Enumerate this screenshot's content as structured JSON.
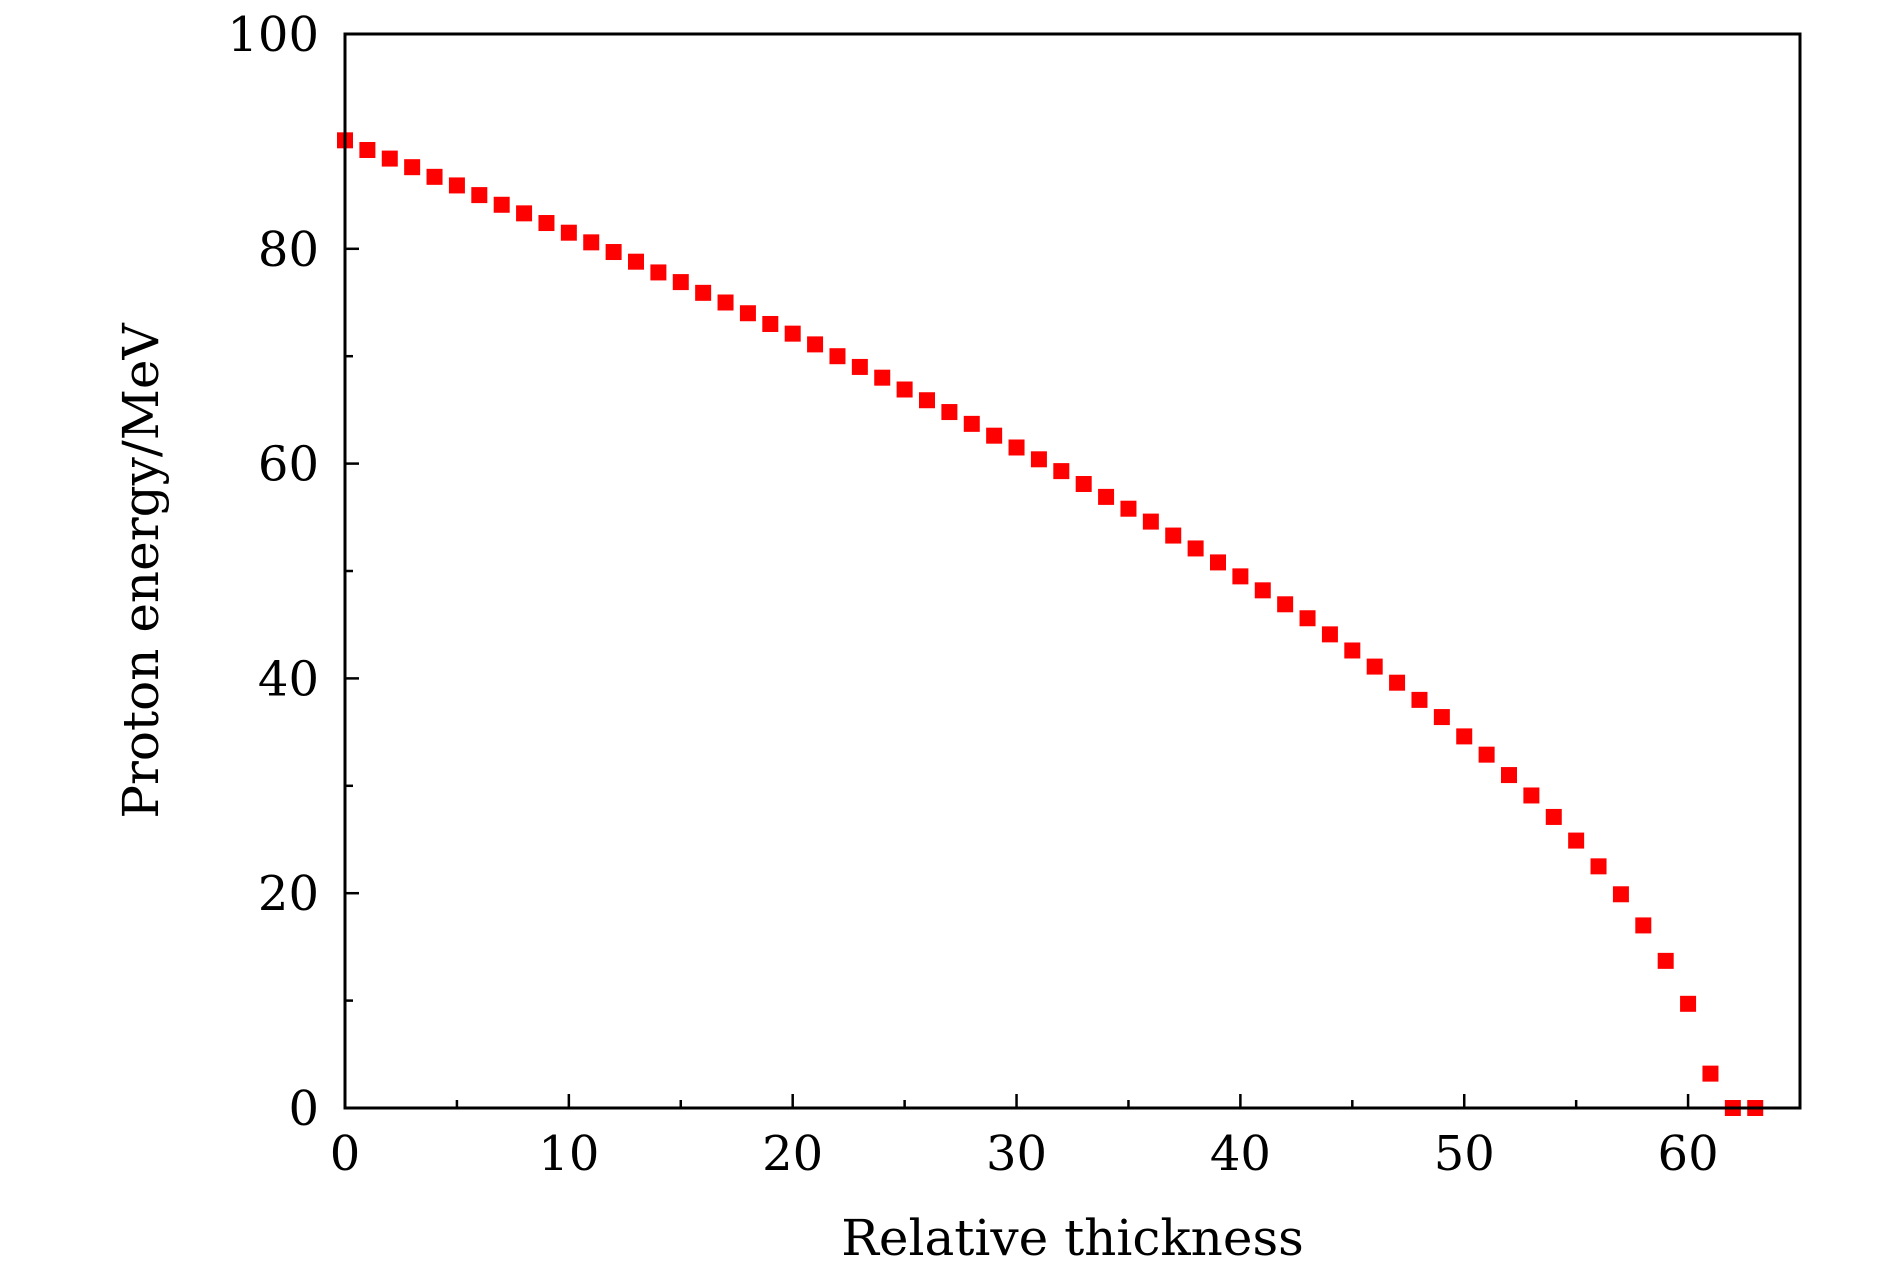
{
  "chart_data": {
    "type": "scatter",
    "xlabel": "Relative thickness",
    "ylabel": "Proton energy/MeV",
    "xlim": [
      0,
      65
    ],
    "ylim": [
      0,
      100
    ],
    "x_ticks": [
      0,
      10,
      20,
      30,
      40,
      50,
      60
    ],
    "x_minor_ticks": [
      5,
      15,
      25,
      35,
      45,
      55
    ],
    "y_ticks": [
      0,
      20,
      40,
      60,
      80,
      100
    ],
    "y_minor_ticks": [
      10,
      30,
      50,
      70,
      90
    ],
    "grid": false,
    "marker": "square",
    "color": "#ff0000",
    "series": [
      {
        "x": [
          0,
          1,
          2,
          3,
          4,
          5,
          6,
          7,
          8,
          9,
          10,
          11,
          12,
          13,
          14,
          15,
          16,
          17,
          18,
          19,
          20,
          21,
          22,
          23,
          24,
          25,
          26,
          27,
          28,
          29,
          30,
          31,
          32,
          33,
          34,
          35,
          36,
          37,
          38,
          39,
          40,
          41,
          42,
          43,
          44,
          45,
          46,
          47,
          48,
          49,
          50,
          51,
          52,
          53,
          54,
          55,
          56,
          57,
          58,
          59,
          60,
          61,
          62,
          63
        ],
        "values": [
          90.1,
          89.2,
          88.4,
          87.6,
          86.7,
          85.9,
          85.0,
          84.1,
          83.3,
          82.4,
          81.5,
          80.6,
          79.7,
          78.8,
          77.8,
          76.9,
          75.9,
          75.0,
          74.0,
          73.0,
          72.1,
          71.1,
          70.0,
          69.0,
          68.0,
          66.9,
          65.9,
          64.8,
          63.7,
          62.6,
          61.5,
          60.4,
          59.3,
          58.1,
          56.9,
          55.8,
          54.6,
          53.3,
          52.1,
          50.8,
          49.5,
          48.2,
          46.9,
          45.6,
          44.1,
          42.6,
          41.1,
          39.6,
          38.0,
          36.4,
          34.6,
          32.9,
          31.0,
          29.1,
          27.1,
          24.9,
          22.5,
          19.9,
          17.0,
          13.7,
          9.7,
          3.2,
          0,
          0
        ]
      }
    ]
  }
}
